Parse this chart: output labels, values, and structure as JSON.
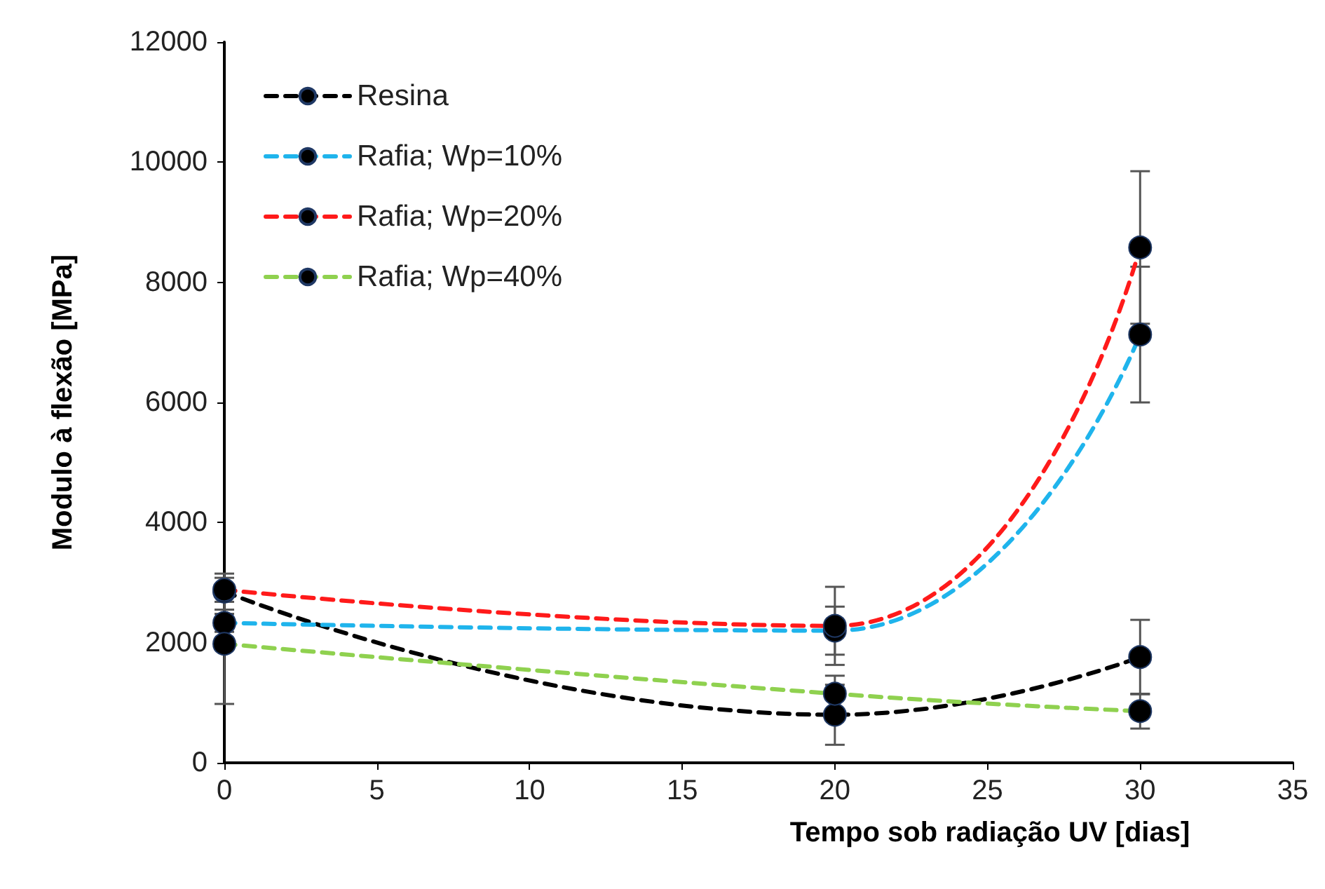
{
  "chart_data": {
    "type": "line",
    "xlabel": "Tempo sob radiação UV [dias]",
    "ylabel": "Modulo à flexão [MPa]",
    "x": [
      0,
      20,
      30
    ],
    "series": [
      {
        "name": "Resina",
        "color": "#000000",
        "values": [
          2850,
          800,
          1760
        ],
        "errors": [
          300,
          500,
          620
        ]
      },
      {
        "name": "Rafia; Wp=10%",
        "color": "#1fb4ec",
        "values": [
          2330,
          2200,
          7130
        ],
        "errors": [
          150,
          400,
          1130
        ]
      },
      {
        "name": "Rafia; Wp=20%",
        "color": "#ff1a1a",
        "values": [
          2880,
          2280,
          8580
        ],
        "errors": [
          200,
          650,
          1270
        ]
      },
      {
        "name": "Rafia; Wp=40%",
        "color": "#8fd14f",
        "values": [
          1980,
          1150,
          860
        ],
        "errors": [
          1000,
          300,
          290
        ]
      }
    ],
    "xlim": [
      0,
      35
    ],
    "xticks": [
      0,
      5,
      10,
      15,
      20,
      25,
      30,
      35
    ],
    "ylim": [
      0,
      12000
    ],
    "yticks": [
      0,
      2000,
      4000,
      6000,
      8000,
      10000,
      12000
    ],
    "grid": false,
    "legend": "top left",
    "marker": "circle",
    "line_style": "dashed"
  }
}
